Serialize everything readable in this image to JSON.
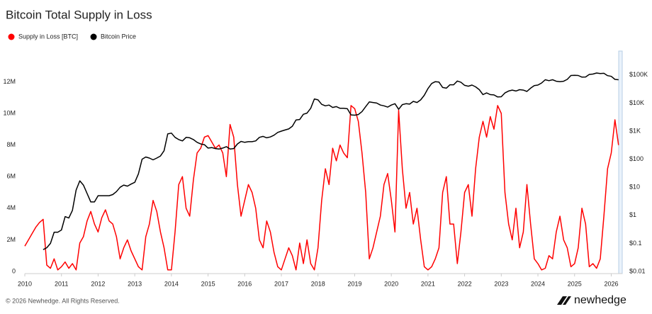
{
  "chart_data": {
    "type": "line",
    "title": "Bitcoin Total Supply in Loss",
    "x": [
      2010.0,
      2010.1,
      2010.2,
      2010.3,
      2010.4,
      2010.5,
      2010.6,
      2010.7,
      2010.8,
      2010.9,
      2011.0,
      2011.1,
      2011.2,
      2011.3,
      2011.4,
      2011.5,
      2011.6,
      2011.7,
      2011.8,
      2011.9,
      2012.0,
      2012.1,
      2012.2,
      2012.3,
      2012.4,
      2012.5,
      2012.6,
      2012.7,
      2012.8,
      2012.9,
      2013.0,
      2013.1,
      2013.2,
      2013.3,
      2013.4,
      2013.5,
      2013.6,
      2013.7,
      2013.8,
      2013.9,
      2014.0,
      2014.1,
      2014.2,
      2014.3,
      2014.4,
      2014.5,
      2014.6,
      2014.7,
      2014.8,
      2014.9,
      2015.0,
      2015.1,
      2015.2,
      2015.3,
      2015.4,
      2015.5,
      2015.6,
      2015.7,
      2015.8,
      2015.9,
      2016.0,
      2016.1,
      2016.2,
      2016.3,
      2016.4,
      2016.5,
      2016.6,
      2016.7,
      2016.8,
      2016.9,
      2017.0,
      2017.1,
      2017.2,
      2017.3,
      2017.4,
      2017.5,
      2017.6,
      2017.7,
      2017.8,
      2017.9,
      2018.0,
      2018.1,
      2018.2,
      2018.3,
      2018.4,
      2018.5,
      2018.6,
      2018.7,
      2018.8,
      2018.9,
      2019.0,
      2019.1,
      2019.2,
      2019.3,
      2019.4,
      2019.5,
      2019.6,
      2019.7,
      2019.8,
      2019.9,
      2020.0,
      2020.1,
      2020.2,
      2020.3,
      2020.4,
      2020.5,
      2020.6,
      2020.7,
      2020.8,
      2020.9,
      2021.0,
      2021.1,
      2021.2,
      2021.3,
      2021.4,
      2021.5,
      2021.6,
      2021.7,
      2021.8,
      2021.9,
      2022.0,
      2022.1,
      2022.2,
      2022.3,
      2022.4,
      2022.5,
      2022.6,
      2022.7,
      2022.8,
      2022.9,
      2023.0,
      2023.1,
      2023.2,
      2023.3,
      2023.4,
      2023.5,
      2023.6,
      2023.7,
      2023.8,
      2023.9,
      2024.0,
      2024.1,
      2024.2,
      2024.3,
      2024.4,
      2024.5,
      2024.6,
      2024.7,
      2024.8,
      2024.9,
      2025.0,
      2025.1,
      2025.2,
      2025.3,
      2025.4,
      2025.5,
      2025.6,
      2025.7,
      2025.8,
      2025.9,
      2026.0,
      2026.1,
      2026.2
    ],
    "series": [
      {
        "name": "Supply in Loss [BTC]",
        "color": "#ff0000",
        "axis": "y",
        "values": [
          1600000,
          2000000,
          2400000,
          2800000,
          3100000,
          3300000,
          400000,
          200000,
          800000,
          100000,
          300000,
          600000,
          200000,
          500000,
          100000,
          1800000,
          2200000,
          3200000,
          3800000,
          3000000,
          2500000,
          3400000,
          3900000,
          3200000,
          3000000,
          2200000,
          800000,
          1500000,
          2000000,
          1300000,
          800000,
          300000,
          100000,
          2200000,
          3000000,
          4500000,
          3800000,
          2500000,
          1500000,
          100000,
          100000,
          2500000,
          5500000,
          6000000,
          4000000,
          3500000,
          5800000,
          7500000,
          7800000,
          8500000,
          8600000,
          8200000,
          7800000,
          8000000,
          7500000,
          6000000,
          9300000,
          8500000,
          5500000,
          3500000,
          4500000,
          5500000,
          5000000,
          4000000,
          2000000,
          1500000,
          3200000,
          2500000,
          1200000,
          300000,
          100000,
          800000,
          1500000,
          1000000,
          100000,
          1800000,
          500000,
          2000000,
          500000,
          100000,
          1500000,
          4500000,
          6500000,
          5500000,
          7800000,
          7000000,
          8000000,
          7500000,
          7200000,
          10500000,
          10300000,
          9500000,
          7500000,
          5000000,
          800000,
          1500000,
          2500000,
          3500000,
          5500000,
          6200000,
          4500000,
          2500000,
          10200000,
          6500000,
          4000000,
          5000000,
          3000000,
          4000000,
          2000000,
          300000,
          100000,
          300000,
          800000,
          1500000,
          5000000,
          6000000,
          3000000,
          3000000,
          500000,
          2500000,
          5000000,
          5500000,
          3500000,
          6500000,
          8500000,
          9500000,
          8500000,
          9800000,
          9000000,
          10500000,
          10000000,
          5000000,
          3000000,
          2000000,
          4000000,
          1500000,
          2500000,
          5500000,
          3000000,
          800000,
          500000,
          100000,
          200000,
          1000000,
          800000,
          2500000,
          3500000,
          2000000,
          1500000,
          300000,
          500000,
          1500000,
          4000000,
          3000000,
          300000,
          500000,
          200000,
          800000,
          3500000,
          6500000,
          7500000,
          9600000,
          8000000
        ]
      },
      {
        "name": "Bitcoin Price",
        "color": "#000000",
        "axis": "y2",
        "values": [
          null,
          null,
          null,
          null,
          null,
          0.06,
          0.07,
          0.1,
          0.25,
          0.25,
          0.3,
          0.9,
          0.8,
          1.5,
          8,
          17,
          12,
          6,
          3,
          3,
          5,
          5,
          5,
          5,
          5.5,
          7,
          10,
          12,
          11,
          13,
          15,
          30,
          100,
          120,
          110,
          95,
          110,
          130,
          200,
          800,
          850,
          600,
          500,
          450,
          600,
          580,
          500,
          400,
          350,
          330,
          250,
          260,
          240,
          230,
          250,
          280,
          230,
          240,
          350,
          430,
          400,
          420,
          420,
          450,
          600,
          650,
          580,
          620,
          720,
          900,
          1000,
          1100,
          1200,
          1500,
          2500,
          2600,
          4000,
          4400,
          6500,
          14000,
          13000,
          9000,
          8000,
          8500,
          7000,
          7500,
          6500,
          6500,
          6300,
          3800,
          3700,
          3900,
          5000,
          7500,
          11000,
          10500,
          10000,
          8500,
          8000,
          7200,
          8500,
          9500,
          6000,
          8800,
          9500,
          9200,
          11500,
          10500,
          13000,
          19000,
          33000,
          50000,
          58000,
          56000,
          36000,
          34000,
          45000,
          45000,
          61000,
          55000,
          43000,
          40000,
          44000,
          38000,
          30000,
          20000,
          23000,
          20000,
          19500,
          16500,
          16800,
          23000,
          27000,
          29000,
          27000,
          30000,
          29000,
          26000,
          34000,
          42000,
          44000,
          52000,
          68000,
          63000,
          68000,
          60000,
          58000,
          60000,
          70000,
          96000,
          98000,
          96000,
          84000,
          85000,
          105000,
          108000,
          118000,
          113000,
          115000,
          95000,
          90000,
          70000,
          68000
        ]
      }
    ],
    "xlim": [
      2010,
      2026.3
    ],
    "xticks": [
      2010,
      2011,
      2012,
      2013,
      2014,
      2015,
      2016,
      2017,
      2018,
      2019,
      2020,
      2021,
      2022,
      2023,
      2024,
      2025,
      2026
    ],
    "ylim": [
      0,
      13500000
    ],
    "yticks": [
      0,
      {
        "value": 2000000,
        "label": "2M"
      },
      {
        "value": 4000000,
        "label": "4M"
      },
      {
        "value": 6000000,
        "label": "6M"
      },
      {
        "value": 8000000,
        "label": "8M"
      },
      {
        "value": 10000000,
        "label": "10M"
      },
      {
        "value": 12000000,
        "label": "12M"
      }
    ],
    "y2lim": [
      0.01,
      400000
    ],
    "y2_log": true,
    "y2ticks": [
      {
        "value": 0.01,
        "label": "$0.01"
      },
      {
        "value": 0.1,
        "label": "$0.1"
      },
      {
        "value": 1,
        "label": "$1"
      },
      {
        "value": 10,
        "label": "$10"
      },
      {
        "value": 100,
        "label": "$100"
      },
      {
        "value": 1000,
        "label": "$1K"
      },
      {
        "value": 10000,
        "label": "$10K"
      },
      {
        "value": 100000,
        "label": "$100K"
      }
    ],
    "grid": false
  },
  "footer": {
    "copyright": "© 2026 Newhedge. All Rights Reserved.",
    "brand": "newhedge"
  }
}
